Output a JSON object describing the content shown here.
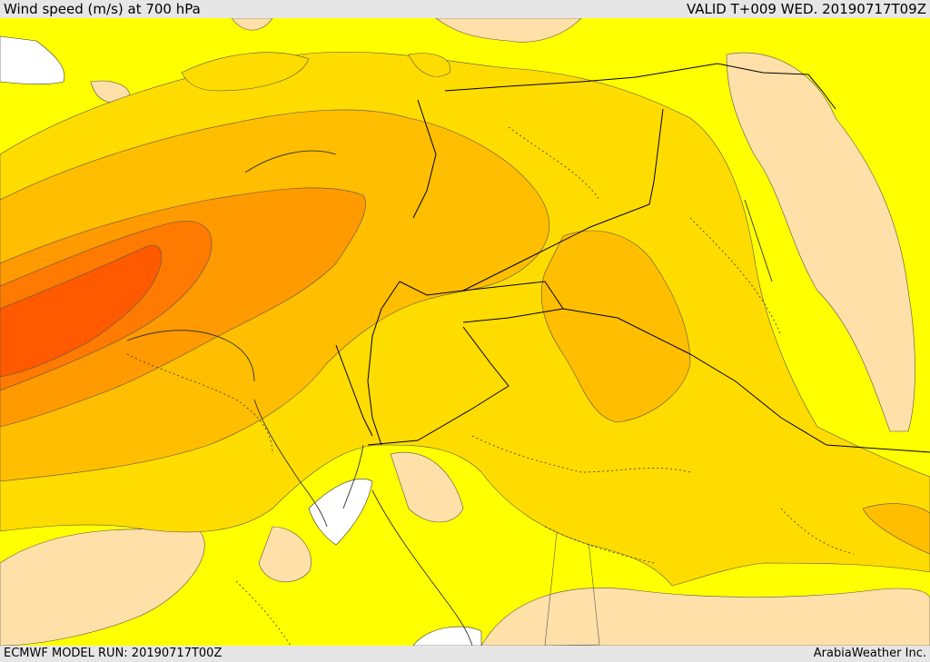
{
  "header": {
    "title": "Wind speed (m/s) at 700 hPa",
    "valid": "VALID T+009 WED. 20190717T09Z"
  },
  "footer": {
    "model_run": "ECMWF MODEL RUN: 20190717T00Z",
    "credit": "ArabiaWeather Inc."
  },
  "colors": {
    "level_lowest": "#ffe0a8",
    "level_1": "#ffff00",
    "level_2": "#ffdc00",
    "level_3": "#ffbe00",
    "level_4": "#ff9a00",
    "level_5": "#ff7a00",
    "level_6": "#ff5a00",
    "land_mask_sea": "#ffffff",
    "borders": "#000000",
    "contours": "#555555"
  }
}
